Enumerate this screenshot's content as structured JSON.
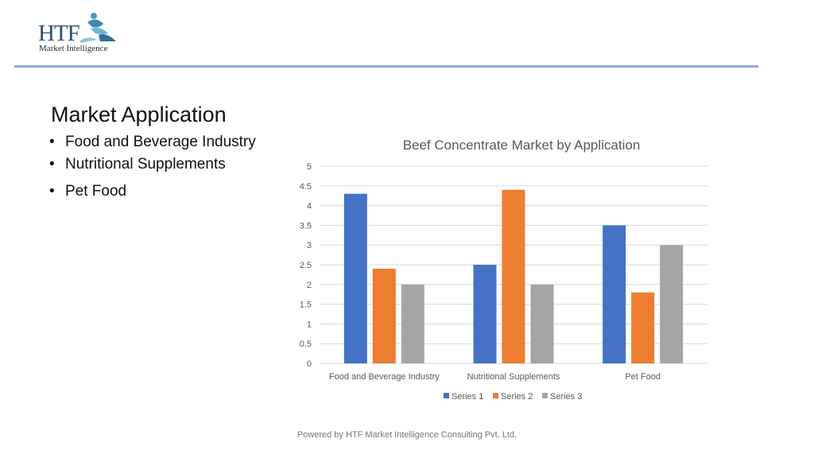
{
  "logo": {
    "letters": "HTF",
    "subtitle": "Market Intelligence"
  },
  "slide": {
    "title": "Market Application",
    "bullets": [
      "Food and Beverage Industry",
      "Nutritional Supplements",
      "Pet Food"
    ]
  },
  "footer": {
    "text": "Powered by HTF Market Intelligence Consulting Pvt. Ltd."
  },
  "colors": {
    "series1": "#4472c4",
    "series2": "#ed7d31",
    "series3": "#a5a5a5",
    "gridline": "#d9d9d9",
    "rule": "#8ea9db"
  },
  "chart_data": {
    "type": "bar",
    "title": "Beef Concentrate Market by Application",
    "categories": [
      "Food and Beverage Industry",
      "Nutritional Supplements",
      "Pet Food"
    ],
    "series": [
      {
        "name": "Series 1",
        "values": [
          4.3,
          2.5,
          3.5
        ]
      },
      {
        "name": "Series 2",
        "values": [
          2.4,
          4.4,
          1.8
        ]
      },
      {
        "name": "Series 3",
        "values": [
          2.0,
          2.0,
          3.0
        ]
      }
    ],
    "ylim": [
      0,
      5
    ],
    "yticks": [
      0,
      0.5,
      1,
      1.5,
      2,
      2.5,
      3,
      3.5,
      4,
      4.5,
      5
    ],
    "xlabel": "",
    "ylabel": "",
    "grid": true,
    "legend": "bottom"
  }
}
